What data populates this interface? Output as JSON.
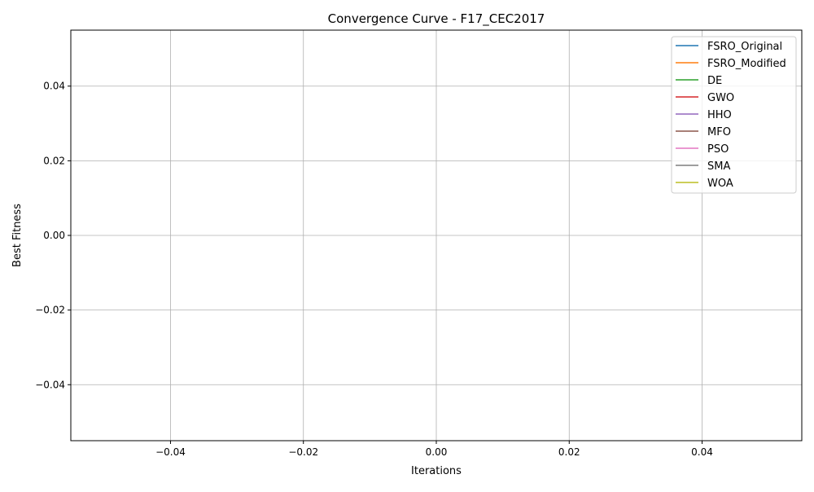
{
  "chart_data": {
    "type": "line",
    "title": "Convergence Curve - F17_CEC2017",
    "xlabel": "Iterations",
    "ylabel": "Best Fitness",
    "xlim": [
      -0.055,
      0.055
    ],
    "ylim": [
      -0.055,
      0.055
    ],
    "xticks": [
      -0.04,
      -0.02,
      0.0,
      0.02,
      0.04
    ],
    "yticks": [
      -0.04,
      -0.02,
      0.0,
      0.02,
      0.04
    ],
    "xtick_labels": [
      "−0.04",
      "−0.02",
      "0.00",
      "0.02",
      "0.04"
    ],
    "ytick_labels": [
      "−0.04",
      "−0.02",
      "0.00",
      "0.02",
      "0.04"
    ],
    "grid": true,
    "legend_position": "upper right",
    "series": [
      {
        "name": "FSRO_Original",
        "color": "#1f77b4",
        "values": []
      },
      {
        "name": "FSRO_Modified",
        "color": "#ff7f0e",
        "values": []
      },
      {
        "name": "DE",
        "color": "#2ca02c",
        "values": []
      },
      {
        "name": "GWO",
        "color": "#d62728",
        "values": []
      },
      {
        "name": "HHO",
        "color": "#9467bd",
        "values": []
      },
      {
        "name": "MFO",
        "color": "#8c564b",
        "values": []
      },
      {
        "name": "PSO",
        "color": "#e377c2",
        "values": []
      },
      {
        "name": "SMA",
        "color": "#7f7f7f",
        "values": []
      },
      {
        "name": "WOA",
        "color": "#bcbd22",
        "values": []
      }
    ]
  }
}
